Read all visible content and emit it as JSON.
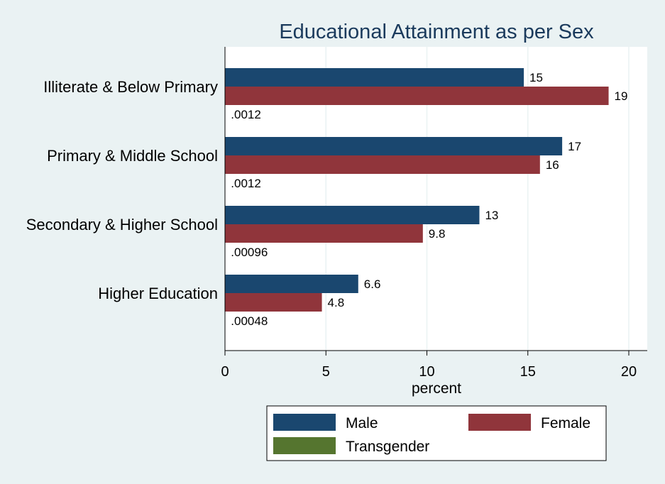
{
  "chart_data": {
    "type": "bar",
    "orientation": "horizontal",
    "title": "Educational Attainment as per Sex",
    "xlabel": "percent",
    "ylabel": "",
    "xlim": [
      0,
      21
    ],
    "xticks": [
      0,
      5,
      10,
      15,
      20
    ],
    "grid": true,
    "categories": [
      "Illiterate & Below Primary",
      "Primary & Middle School",
      "Secondary & Higher School",
      "Higher Education"
    ],
    "series": [
      {
        "name": "Male",
        "color": "#1a476f",
        "values": [
          14.8,
          16.7,
          12.6,
          6.6
        ],
        "labels": [
          "15",
          "17",
          "13",
          "6.6"
        ]
      },
      {
        "name": "Female",
        "color": "#90353b",
        "values": [
          19.0,
          15.6,
          9.8,
          4.8
        ],
        "labels": [
          "19",
          "16",
          "9.8",
          "4.8"
        ]
      },
      {
        "name": "Transgender",
        "color": "#55752f",
        "values": [
          0.0012,
          0.0012,
          0.00096,
          0.00048
        ],
        "labels": [
          ".0012",
          ".0012",
          ".00096",
          ".00048"
        ]
      }
    ],
    "legend": {
      "placement": "bottom",
      "columns": 2
    }
  }
}
